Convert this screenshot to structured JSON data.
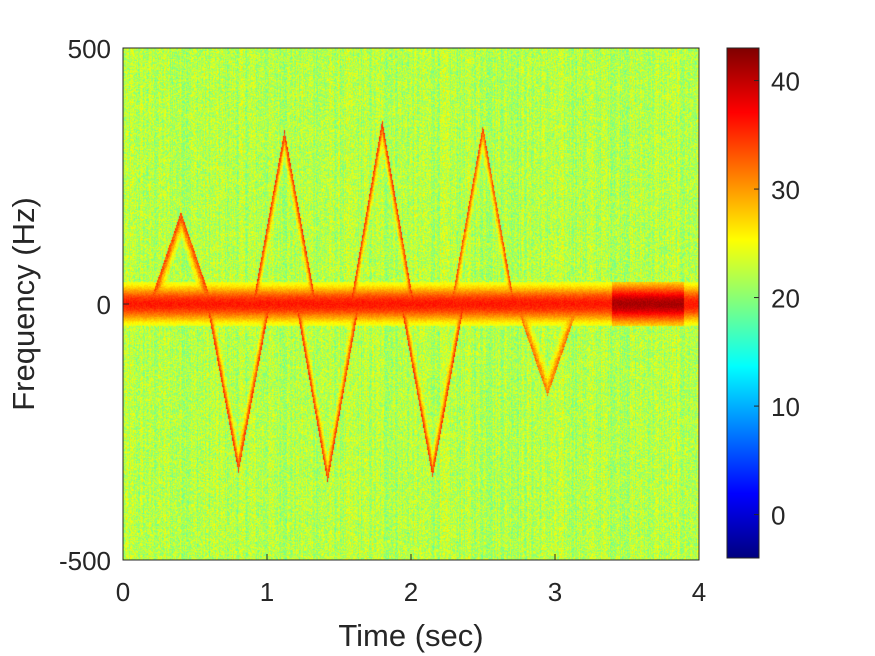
{
  "chart_data": {
    "type": "heatmap",
    "title": "",
    "xlabel": "Time (sec)",
    "ylabel": "Frequency (Hz)",
    "xlim": [
      0,
      4
    ],
    "ylim": [
      -500,
      500
    ],
    "x_ticks": [
      "0",
      "1",
      "2",
      "3",
      "4"
    ],
    "y_ticks": [
      "-500",
      "0",
      "500"
    ],
    "colormap": "jet",
    "colorbar": {
      "range": [
        -4,
        43
      ],
      "ticks": [
        "0",
        "10",
        "20",
        "30",
        "40"
      ],
      "tick_values": [
        0,
        10,
        20,
        30,
        40
      ]
    },
    "background_level_db": 22,
    "noise_amplitude_db": 4,
    "features": [
      {
        "kind": "horizontal_band",
        "name": "zero-doppler torso return",
        "center_hz": 0,
        "half_width_hz": 35,
        "level_db": 36,
        "x_range_sec": [
          0,
          4
        ],
        "strong_segment_sec": [
          3.4,
          3.9
        ],
        "strong_level_db": 41
      },
      {
        "kind": "micro_doppler_arc",
        "peak_time_sec": 0.4,
        "peak_hz": 180,
        "level_db": 33
      },
      {
        "kind": "micro_doppler_arc",
        "peak_time_sec": 0.8,
        "peak_hz": -330,
        "level_db": 34
      },
      {
        "kind": "micro_doppler_arc",
        "peak_time_sec": 1.12,
        "peak_hz": 340,
        "level_db": 34
      },
      {
        "kind": "micro_doppler_arc",
        "peak_time_sec": 1.42,
        "peak_hz": -350,
        "level_db": 34
      },
      {
        "kind": "micro_doppler_arc",
        "peak_time_sec": 1.8,
        "peak_hz": 360,
        "level_db": 34
      },
      {
        "kind": "micro_doppler_arc",
        "peak_time_sec": 2.15,
        "peak_hz": -340,
        "level_db": 34
      },
      {
        "kind": "micro_doppler_arc",
        "peak_time_sec": 2.5,
        "peak_hz": 350,
        "level_db": 33
      },
      {
        "kind": "micro_doppler_arc",
        "peak_time_sec": 2.95,
        "peak_hz": -180,
        "level_db": 31
      }
    ]
  }
}
